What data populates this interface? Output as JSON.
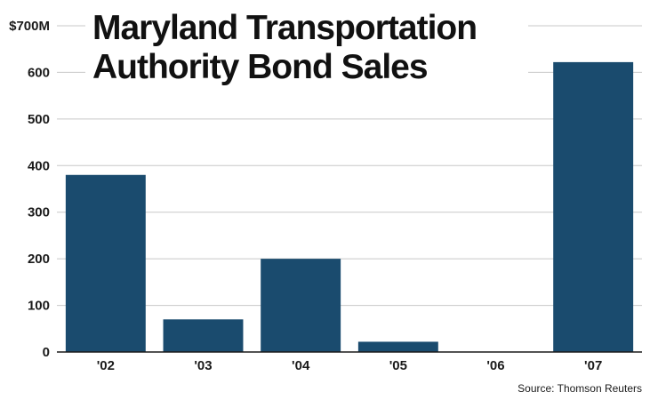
{
  "chart_data": {
    "type": "bar",
    "title": [
      "Maryland Transportation",
      "Authority Bond Sales"
    ],
    "categories": [
      "'02",
      "'03",
      "'04",
      "'05",
      "'06",
      "'07"
    ],
    "values": [
      380,
      70,
      200,
      22,
      0,
      622
    ],
    "ylim": [
      0,
      700
    ],
    "yticks": [
      0,
      100,
      200,
      300,
      400,
      500,
      600,
      700
    ],
    "ytick_labels": [
      "0",
      "100",
      "200",
      "300",
      "400",
      "500",
      "600",
      "$700M"
    ],
    "grid": true,
    "bar_color": "#1a4b6e",
    "grid_color": "#c8c8c8",
    "source": "Source: Thomson Reuters"
  }
}
